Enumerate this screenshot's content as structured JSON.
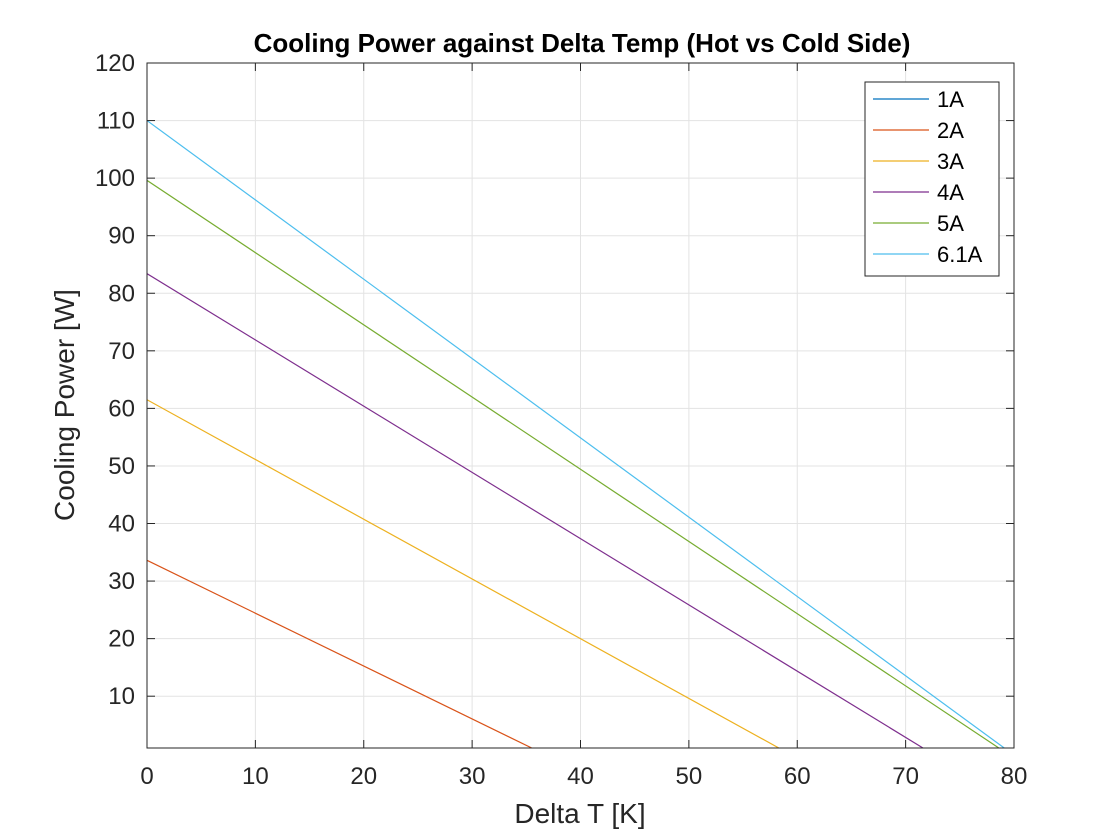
{
  "chart_data": {
    "type": "line",
    "title": "Cooling Power against Delta Temp (Hot vs Cold Side)",
    "xlabel": "Delta T [K]",
    "ylabel": "Cooling Power [W]",
    "xlim": [
      0,
      80
    ],
    "ylim": [
      1,
      120
    ],
    "xticks": [
      0,
      10,
      20,
      30,
      40,
      50,
      60,
      70,
      80
    ],
    "yticks": [
      10,
      20,
      30,
      40,
      50,
      60,
      70,
      80,
      90,
      100,
      110,
      120
    ],
    "grid": true,
    "legend_position": "top-right",
    "series": [
      {
        "name": "1A",
        "color": "#0072BD",
        "x": [
          0,
          0
        ],
        "y": [
          0,
          0
        ]
      },
      {
        "name": "2A",
        "color": "#D95319",
        "x": [
          0,
          35.5
        ],
        "y": [
          33.6,
          1
        ]
      },
      {
        "name": "3A",
        "color": "#EDB120",
        "x": [
          0,
          58.3
        ],
        "y": [
          61.5,
          1
        ]
      },
      {
        "name": "4A",
        "color": "#7E2F8E",
        "x": [
          0,
          71.6
        ],
        "y": [
          83.4,
          1
        ]
      },
      {
        "name": "5A",
        "color": "#77AC30",
        "x": [
          0,
          78.6
        ],
        "y": [
          99.6,
          1
        ]
      },
      {
        "name": "6.1A",
        "color": "#4DBEEE",
        "x": [
          0,
          79.1
        ],
        "y": [
          110.0,
          1
        ]
      }
    ]
  }
}
